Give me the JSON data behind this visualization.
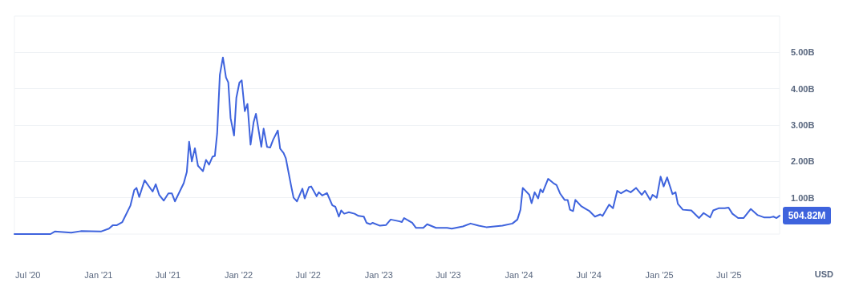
{
  "chart_data": {
    "type": "line",
    "x": [
      "2020-05-27",
      "2020-08-29",
      "2020-09-09",
      "2020-10-22",
      "2020-11-16",
      "2021-01-07",
      "2021-01-28",
      "2021-02-07",
      "2021-02-17",
      "2021-03-04",
      "2021-03-25",
      "2021-04-04",
      "2021-04-10",
      "2021-04-17",
      "2021-05-01",
      "2021-05-22",
      "2021-05-30",
      "2021-06-08",
      "2021-06-20",
      "2021-07-02",
      "2021-07-11",
      "2021-07-19",
      "2021-08-11",
      "2021-08-19",
      "2021-08-25",
      "2021-09-01",
      "2021-09-09",
      "2021-09-17",
      "2021-09-30",
      "2021-10-08",
      "2021-10-16",
      "2021-10-25",
      "2021-10-31",
      "2021-11-06",
      "2021-11-13",
      "2021-11-21",
      "2021-11-29",
      "2021-12-05",
      "2021-12-11",
      "2021-12-20",
      "2021-12-26",
      "2022-01-03",
      "2022-01-09",
      "2022-01-17",
      "2022-01-24",
      "2022-02-01",
      "2022-02-09",
      "2022-02-15",
      "2022-03-01",
      "2022-03-07",
      "2022-03-16",
      "2022-03-24",
      "2022-04-01",
      "2022-04-13",
      "2022-04-19",
      "2022-04-28",
      "2022-05-04",
      "2022-05-18",
      "2022-05-24",
      "2022-06-02",
      "2022-06-16",
      "2022-06-22",
      "2022-07-03",
      "2022-07-09",
      "2022-07-23",
      "2022-07-29",
      "2022-08-07",
      "2022-08-19",
      "2022-09-02",
      "2022-09-10",
      "2022-09-19",
      "2022-09-25",
      "2022-10-03",
      "2022-10-15",
      "2022-10-30",
      "2022-11-09",
      "2022-11-23",
      "2022-11-30",
      "2022-12-10",
      "2022-12-16",
      "2023-01-04",
      "2023-01-20",
      "2023-02-01",
      "2023-02-24",
      "2023-03-02",
      "2023-03-08",
      "2023-03-29",
      "2023-04-08",
      "2023-04-27",
      "2023-05-07",
      "2023-05-30",
      "2023-06-28",
      "2023-07-10",
      "2023-08-08",
      "2023-08-28",
      "2023-09-18",
      "2023-10-08",
      "2023-11-19",
      "2023-12-15",
      "2023-12-28",
      "2024-01-05",
      "2024-01-11",
      "2024-01-28",
      "2024-02-03",
      "2024-02-11",
      "2024-02-20",
      "2024-02-26",
      "2024-03-03",
      "2024-03-17",
      "2024-03-31",
      "2024-04-08",
      "2024-04-17",
      "2024-04-29",
      "2024-05-07",
      "2024-05-13",
      "2024-05-21",
      "2024-05-27",
      "2024-06-11",
      "2024-06-23",
      "2024-07-03",
      "2024-07-17",
      "2024-07-31",
      "2024-08-06",
      "2024-08-23",
      "2024-09-02",
      "2024-09-13",
      "2024-09-23",
      "2024-10-07",
      "2024-10-18",
      "2024-11-01",
      "2024-11-16",
      "2024-11-24",
      "2024-12-08",
      "2024-12-14",
      "2024-12-25",
      "2025-01-04",
      "2025-01-12",
      "2025-01-21",
      "2025-02-04",
      "2025-02-12",
      "2025-02-18",
      "2025-03-03",
      "2025-03-25",
      "2025-04-14",
      "2025-04-26",
      "2025-05-13",
      "2025-05-21",
      "2025-06-04",
      "2025-06-20",
      "2025-06-30",
      "2025-07-10",
      "2025-07-25",
      "2025-08-08",
      "2025-08-27",
      "2025-09-14",
      "2025-09-30",
      "2025-10-17",
      "2025-10-25",
      "2025-11-02",
      "2025-11-10"
    ],
    "series": [
      {
        "color": "#3e63dd",
        "values": [
          0.0,
          0.0,
          0.07,
          0.04,
          0.08,
          0.07,
          0.15,
          0.24,
          0.24,
          0.33,
          0.78,
          1.21,
          1.27,
          1.02,
          1.48,
          1.17,
          1.37,
          1.08,
          0.92,
          1.12,
          1.12,
          0.9,
          1.4,
          1.71,
          2.54,
          2.0,
          2.36,
          1.88,
          1.73,
          2.04,
          1.91,
          2.13,
          2.15,
          2.77,
          4.38,
          4.86,
          4.31,
          4.17,
          3.19,
          2.71,
          3.75,
          4.17,
          4.23,
          3.38,
          3.58,
          2.46,
          3.08,
          3.31,
          2.4,
          2.9,
          2.4,
          2.38,
          2.6,
          2.85,
          2.35,
          2.23,
          2.08,
          1.31,
          1.0,
          0.9,
          1.25,
          0.98,
          1.29,
          1.31,
          1.04,
          1.15,
          1.06,
          1.13,
          0.79,
          0.75,
          0.48,
          0.65,
          0.56,
          0.6,
          0.56,
          0.5,
          0.48,
          0.31,
          0.27,
          0.31,
          0.23,
          0.25,
          0.4,
          0.35,
          0.33,
          0.44,
          0.31,
          0.17,
          0.17,
          0.27,
          0.17,
          0.17,
          0.15,
          0.21,
          0.29,
          0.23,
          0.19,
          0.23,
          0.29,
          0.4,
          0.67,
          1.27,
          1.08,
          0.85,
          1.15,
          0.98,
          1.23,
          1.15,
          1.52,
          1.4,
          1.35,
          1.12,
          0.94,
          0.94,
          0.67,
          0.63,
          0.94,
          0.77,
          0.69,
          0.63,
          0.48,
          0.54,
          0.5,
          0.81,
          0.71,
          1.19,
          1.12,
          1.21,
          1.15,
          1.27,
          1.08,
          1.19,
          0.94,
          1.08,
          1.0,
          1.58,
          1.31,
          1.56,
          1.1,
          1.15,
          0.83,
          0.67,
          0.65,
          0.44,
          0.58,
          0.46,
          0.65,
          0.71,
          0.71,
          0.73,
          0.56,
          0.44,
          0.44,
          0.69,
          0.52,
          0.46,
          0.46,
          0.48,
          0.44,
          0.50482
        ]
      }
    ],
    "xlim": [
      "2020-05-27",
      "2025-11-10"
    ],
    "xticks": [
      {
        "value": "2020-07-01",
        "label": "Jul '20"
      },
      {
        "value": "2021-01-01",
        "label": "Jan '21"
      },
      {
        "value": "2021-07-01",
        "label": "Jul '21"
      },
      {
        "value": "2022-01-01",
        "label": "Jan '22"
      },
      {
        "value": "2022-07-01",
        "label": "Jul '22"
      },
      {
        "value": "2023-01-01",
        "label": "Jan '23"
      },
      {
        "value": "2023-07-01",
        "label": "Jul '23"
      },
      {
        "value": "2024-01-01",
        "label": "Jan '24"
      },
      {
        "value": "2024-07-01",
        "label": "Jul '24"
      },
      {
        "value": "2025-01-01",
        "label": "Jan '25"
      },
      {
        "value": "2025-07-01",
        "label": "Jul '25"
      }
    ],
    "ylim": [
      0,
      6
    ],
    "yticks": [
      {
        "value": 1,
        "label": "1.00B"
      },
      {
        "value": 2,
        "label": "2.00B"
      },
      {
        "value": 3,
        "label": "3.00B"
      },
      {
        "value": 4,
        "label": "4.00B"
      },
      {
        "value": 5,
        "label": "5.00B"
      }
    ],
    "ylabel": "USD",
    "annotations": [
      {
        "text": "504.82M",
        "x": "2025-11-10",
        "y": 0.50482
      }
    ],
    "grid": "y",
    "marker": "none",
    "line_style": "solid"
  }
}
